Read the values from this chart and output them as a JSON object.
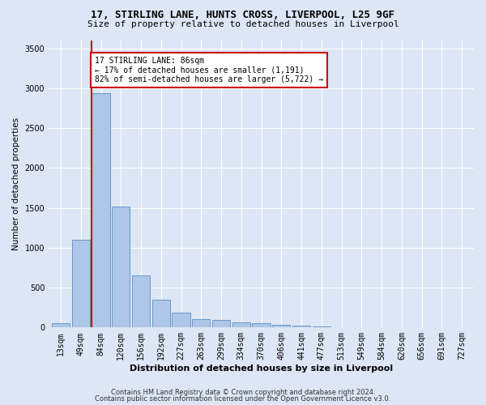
{
  "title_line1": "17, STIRLING LANE, HUNTS CROSS, LIVERPOOL, L25 9GF",
  "title_line2": "Size of property relative to detached houses in Liverpool",
  "xlabel": "Distribution of detached houses by size in Liverpool",
  "ylabel": "Number of detached properties",
  "bar_labels": [
    "13sqm",
    "49sqm",
    "84sqm",
    "120sqm",
    "156sqm",
    "192sqm",
    "227sqm",
    "263sqm",
    "299sqm",
    "334sqm",
    "370sqm",
    "406sqm",
    "441sqm",
    "477sqm",
    "513sqm",
    "549sqm",
    "584sqm",
    "620sqm",
    "656sqm",
    "691sqm",
    "727sqm"
  ],
  "bar_values": [
    55,
    1100,
    2940,
    1520,
    650,
    345,
    190,
    100,
    90,
    65,
    55,
    30,
    20,
    10,
    8,
    5,
    3,
    2,
    1,
    1,
    1
  ],
  "bar_color": "#aec6e8",
  "bar_edge_color": "#5a8fc0",
  "vline_x_index": 2,
  "vline_color": "#cc0000",
  "annotation_text": "17 STIRLING LANE: 86sqm\n← 17% of detached houses are smaller (1,191)\n82% of semi-detached houses are larger (5,722) →",
  "annotation_box_color": "#ffffff",
  "annotation_box_edge": "#cc0000",
  "ylim": [
    0,
    3600
  ],
  "yticks": [
    0,
    500,
    1000,
    1500,
    2000,
    2500,
    3000,
    3500
  ],
  "footer_line1": "Contains HM Land Registry data © Crown copyright and database right 2024.",
  "footer_line2": "Contains public sector information licensed under the Open Government Licence v3.0.",
  "bg_color": "#dce6f5",
  "grid_color": "#ffffff",
  "title_fontsize": 9,
  "subtitle_fontsize": 8,
  "xlabel_fontsize": 8,
  "ylabel_fontsize": 7.5,
  "tick_fontsize": 7,
  "footer_fontsize": 6
}
